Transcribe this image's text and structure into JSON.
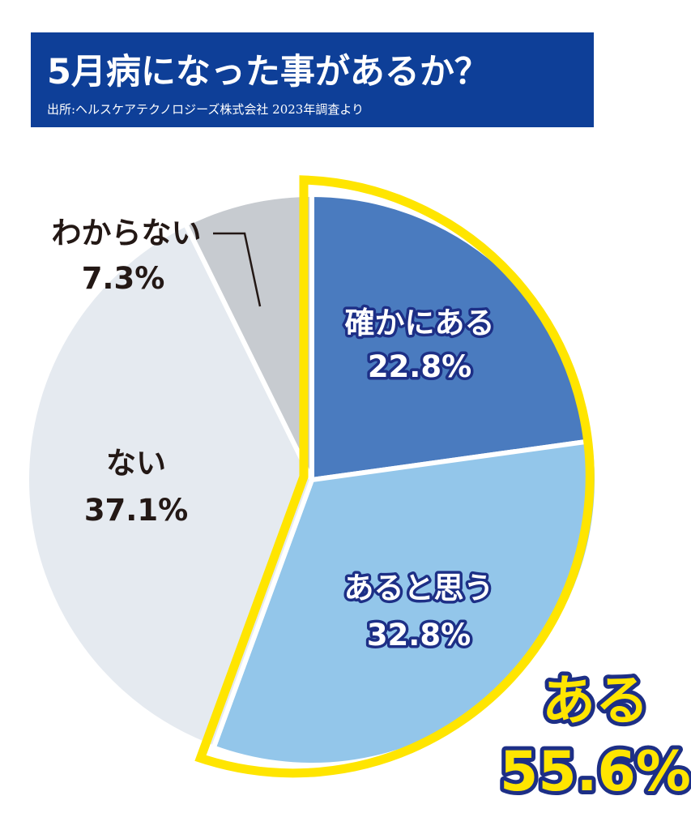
{
  "header": {
    "title": "5月病になった事があるか？",
    "source": "出所:ヘルスケアテクノロジーズ株式会社 2023年調査より"
  },
  "chart_data": {
    "type": "pie",
    "unit": "%",
    "start": "12 o'clock, clockwise",
    "slices": [
      {
        "label": "確かにある",
        "value": 22.8,
        "value_text": "22.8%",
        "color": "#4a7bbf",
        "label_style": "white"
      },
      {
        "label": "あると思う",
        "value": 32.8,
        "value_text": "32.8%",
        "color": "#93c6ea",
        "label_style": "white"
      },
      {
        "label": "ない",
        "value": 37.1,
        "value_text": "37.1%",
        "color": "#e5eaf0",
        "label_style": "dark"
      },
      {
        "label": "わからない",
        "value": 7.3,
        "value_text": "7.3%",
        "color": "#c7cbd0",
        "label_style": "dark"
      }
    ],
    "highlight": {
      "label": "ある",
      "value": 55.6,
      "value_text": "55.6%",
      "includes": [
        "確かにある",
        "あると思う"
      ],
      "outline_color": "#ffe500"
    }
  },
  "colors": {
    "header_bg": "#0e3f98",
    "label_outline": "#1d2f86",
    "leader_line": "#231815"
  }
}
